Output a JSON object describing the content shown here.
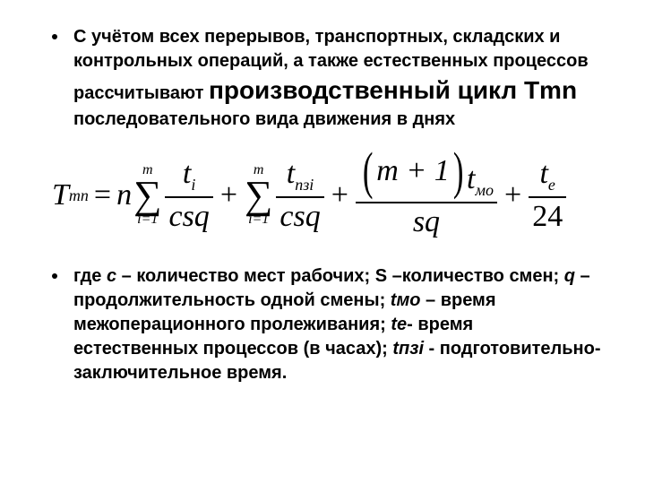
{
  "bullet1": {
    "pre": "С учётом всех перерывов, транспортных, складских и контрольных операций, а также естественных процессов рассчитывают ",
    "big": "производственный цикл Tmn",
    "post": " последовательного вида движения в днях"
  },
  "formula": {
    "lhs": {
      "var": "T",
      "sub": "mn"
    },
    "n": "n",
    "sum1": {
      "top": "m",
      "bot": "i=1"
    },
    "frac1": {
      "num_var": "t",
      "num_sub": "i",
      "den": "csq"
    },
    "sum2": {
      "top": "m",
      "bot": "i=1"
    },
    "frac2": {
      "num_var": "t",
      "num_sub": "пзi",
      "den": "csq"
    },
    "frac3": {
      "paren_inner": "m + 1",
      "after_var": "t",
      "after_sub": "мо",
      "den": "sq"
    },
    "frac4": {
      "num_var": "t",
      "num_sub": "e",
      "den": "24"
    }
  },
  "bullet2": {
    "pre": "где ",
    "c": "с",
    "c_txt": " – количество мест рабочих; S –количество смен; ",
    "q": "q",
    "q_txt": " – продолжительность одной смены; ",
    "tmo": "tмо",
    "tmo_txt": " – время межоперационного пролеживания; ",
    "te": "te",
    "te_txt": "- время естественных процессов (в часах); ",
    "tpzi": "tпзi",
    "tpzi_txt": "  - подготовительно-заключительное время."
  },
  "style": {
    "text_color": "#000000",
    "background": "#ffffff",
    "body_fontsize_pt": 20,
    "big_fontsize_pt": 28,
    "formula_fontsize_pt": 34
  }
}
